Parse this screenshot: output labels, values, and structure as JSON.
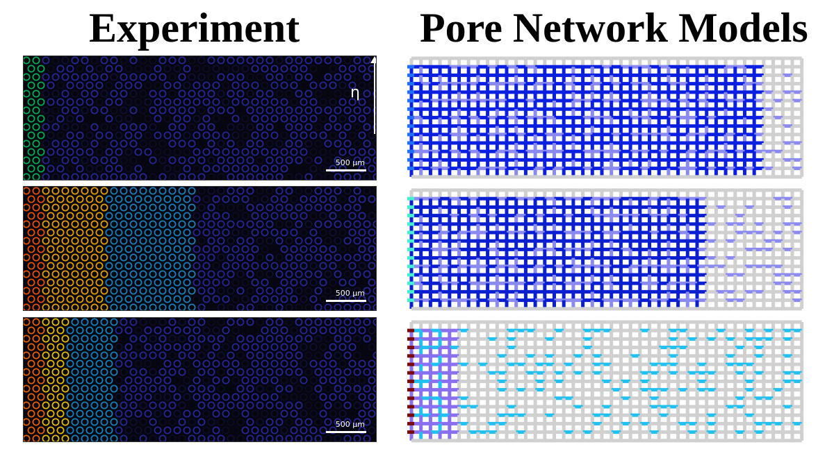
{
  "titles": {
    "left": "Experiment",
    "right": "Pore Network Models"
  },
  "experiment": {
    "scale_label": "500 µm",
    "colorbar_symbol": "η",
    "panels": [
      {
        "id": "exp-1",
        "front": 0.06,
        "edge_color": "#2bd0a0",
        "hot_color": "#00c060"
      },
      {
        "id": "exp-2",
        "front": 0.48,
        "edge_color": "#ffb000",
        "hot_color": "#ff5a00"
      },
      {
        "id": "exp-3",
        "front": 0.26,
        "edge_color": "#ffd000",
        "hot_color": "#ff6a00"
      }
    ]
  },
  "pore_network": {
    "panels": [
      {
        "id": "pnm-1",
        "throat_color": "#0a1fe0",
        "light_color": "#8a8af0",
        "front": 0.88,
        "inlet_color": "#2070ff",
        "grey": "#d0d0d0"
      },
      {
        "id": "pnm-2",
        "throat_color": "#0a1fd0",
        "light_color": "#8a8af0",
        "front": 0.72,
        "inlet_color": "#44f0d0",
        "grey": "#d0d0d0"
      },
      {
        "id": "pnm-3",
        "throat_color": "#8a70f0",
        "light_color": "#20c0f0",
        "front": 0.1,
        "inlet_color": "#7a0a0a",
        "grey": "#d0d0d0"
      }
    ]
  }
}
